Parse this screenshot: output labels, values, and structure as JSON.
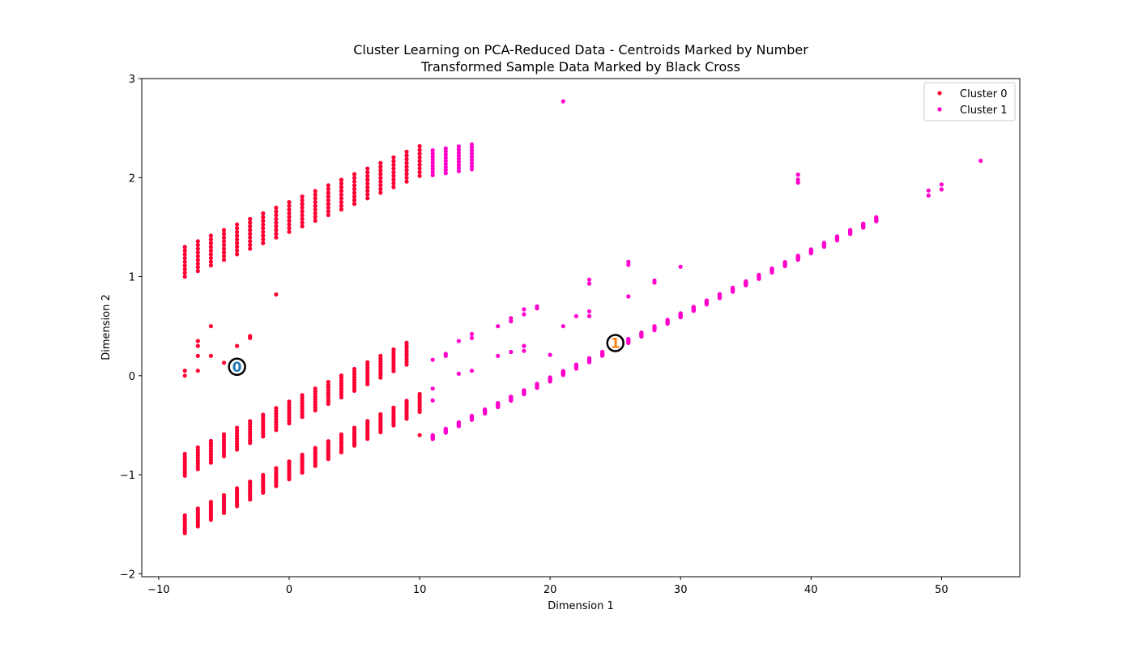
{
  "chart_data": {
    "type": "scatter",
    "title": "Cluster Learning on PCA-Reduced Data - Centroids Marked by Number",
    "subtitle": "Transformed Sample Data Marked by Black Cross",
    "xlabel": "Dimension 1",
    "ylabel": "Dimension 2",
    "xlim": [
      -11.3,
      56.0
    ],
    "ylim": [
      -2.03,
      3.0
    ],
    "xticks": [
      -10,
      0,
      10,
      20,
      30,
      40,
      50
    ],
    "yticks": [
      -2,
      -1,
      0,
      1,
      2,
      3
    ],
    "grid": false,
    "legend_position": "top-right",
    "legend": [
      {
        "label": "Cluster 0",
        "color": "#ff0033"
      },
      {
        "label": "Cluster 1",
        "color": "#ff00cc"
      }
    ],
    "bands": [
      {
        "cluster": 0,
        "x_from": -8,
        "x_to": 10,
        "x_step": 1,
        "y_at_start": 1.15,
        "slope": 0.0565,
        "spread": 0.3
      },
      {
        "cluster": 1,
        "x_from": 11,
        "x_to": 14,
        "x_step": 1,
        "y_at_start": 2.15,
        "slope": 0.02,
        "spread": 0.25
      },
      {
        "cluster": 0,
        "x_from": -8,
        "x_to": 9,
        "x_step": 1,
        "y_at_start": -0.9,
        "slope": 0.066,
        "spread": 0.22
      },
      {
        "cluster": 0,
        "x_from": -8,
        "x_to": 10,
        "x_step": 1,
        "y_at_start": -1.5,
        "slope": 0.068,
        "spread": 0.18
      },
      {
        "cluster": 1,
        "x_from": 11,
        "x_to": 45,
        "x_step": 1,
        "y_at_start": -0.62,
        "slope": 0.0647,
        "spread": 0.04
      }
    ],
    "series": [
      {
        "name": "Cluster 0",
        "color": "#ff0033",
        "points": [
          [
            -8,
            0.05
          ],
          [
            -8,
            0.0
          ],
          [
            -7,
            0.3
          ],
          [
            -7,
            0.35
          ],
          [
            -7,
            0.05
          ],
          [
            -7,
            0.2
          ],
          [
            -6,
            0.5
          ],
          [
            -6,
            0.2
          ],
          [
            -5,
            0.13
          ],
          [
            -3,
            0.4
          ],
          [
            -3,
            0.38
          ],
          [
            -4,
            0.3
          ],
          [
            9,
            -0.3
          ],
          [
            10,
            -0.6
          ],
          [
            -1,
            0.82
          ]
        ]
      },
      {
        "name": "Cluster 1",
        "color": "#ff00cc",
        "points": [
          [
            11,
            0.16
          ],
          [
            11,
            -0.13
          ],
          [
            11,
            -0.25
          ],
          [
            12,
            0.2
          ],
          [
            12,
            0.22
          ],
          [
            13,
            0.35
          ],
          [
            13,
            0.02
          ],
          [
            14,
            0.42
          ],
          [
            14,
            0.38
          ],
          [
            14,
            0.05
          ],
          [
            16,
            0.5
          ],
          [
            16,
            0.2
          ],
          [
            17,
            0.55
          ],
          [
            17,
            0.58
          ],
          [
            17,
            0.24
          ],
          [
            18,
            0.62
          ],
          [
            18,
            0.67
          ],
          [
            18,
            0.3
          ],
          [
            18,
            0.25
          ],
          [
            19,
            0.68
          ],
          [
            19,
            0.7
          ],
          [
            20,
            0.21
          ],
          [
            21,
            2.77
          ],
          [
            21,
            0.5
          ],
          [
            22,
            0.6
          ],
          [
            23,
            0.97
          ],
          [
            23,
            0.93
          ],
          [
            23,
            0.65
          ],
          [
            23,
            0.6
          ],
          [
            26,
            1.15
          ],
          [
            26,
            1.12
          ],
          [
            26,
            0.8
          ],
          [
            28,
            0.96
          ],
          [
            28,
            0.94
          ],
          [
            30,
            1.1
          ],
          [
            39,
            2.03
          ],
          [
            39,
            1.98
          ],
          [
            39,
            1.95
          ],
          [
            49,
            1.87
          ],
          [
            49,
            1.82
          ],
          [
            50,
            1.93
          ],
          [
            50,
            1.88
          ],
          [
            53,
            2.17
          ]
        ]
      }
    ],
    "centroids": [
      {
        "label": "0",
        "x": -4,
        "y": 0.09,
        "text_color": "#1f77b4"
      },
      {
        "label": "1",
        "x": 25,
        "y": 0.33,
        "text_color": "#ff7f0e"
      }
    ]
  }
}
